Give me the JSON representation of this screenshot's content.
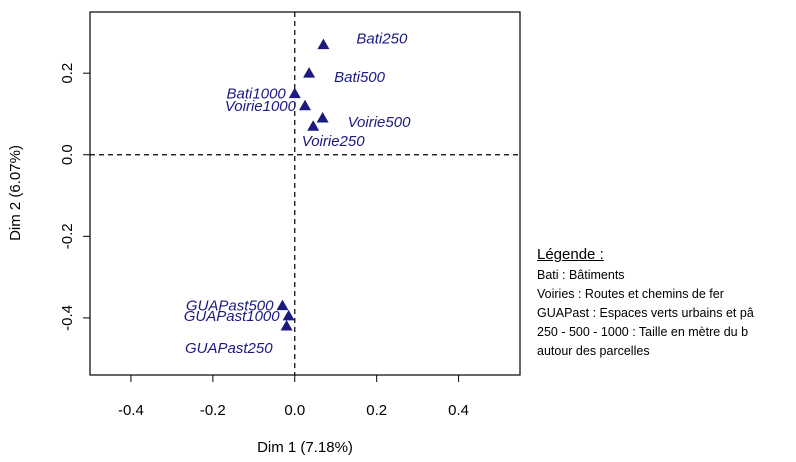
{
  "chart_data": {
    "type": "scatter",
    "xlabel": "Dim 1 (7.18%)",
    "ylabel": "Dim 2 (6.07%)",
    "xlim": [
      -0.5,
      0.55
    ],
    "ylim": [
      -0.54,
      0.35
    ],
    "xticks": [
      "-0.4",
      "-0.2",
      "0.0",
      "0.2",
      "0.4"
    ],
    "xtick_values": [
      -0.4,
      -0.2,
      0.0,
      0.2,
      0.4
    ],
    "yticks": [
      "-0.4",
      "-0.2",
      "0.0",
      "0.2"
    ],
    "ytick_values": [
      -0.4,
      -0.2,
      0.0,
      0.2
    ],
    "reference_lines": {
      "x": 0,
      "y": 0,
      "style": "dashed"
    },
    "marker": "filled-triangle",
    "marker_color": "#1a1a80",
    "points": [
      {
        "label": "Bati250",
        "x": 0.07,
        "y": 0.27,
        "label_side": "right"
      },
      {
        "label": "Bati500",
        "x": 0.035,
        "y": 0.2,
        "label_side": "right-below"
      },
      {
        "label": "Bati1000",
        "x": 0.0,
        "y": 0.15,
        "label_side": "left"
      },
      {
        "label": "Voirie1000",
        "x": 0.025,
        "y": 0.12,
        "label_side": "left"
      },
      {
        "label": "Voirie500",
        "x": 0.068,
        "y": 0.09,
        "label_side": "right-below"
      },
      {
        "label": "Voirie250",
        "x": 0.045,
        "y": 0.07,
        "label_side": "below"
      },
      {
        "label": "GUAPast500",
        "x": -0.03,
        "y": -0.37,
        "label_side": "left"
      },
      {
        "label": "GUAPast1000",
        "x": -0.015,
        "y": -0.395,
        "label_side": "left"
      },
      {
        "label": "GUAPast250",
        "x": -0.02,
        "y": -0.42,
        "label_side": "left-below"
      }
    ]
  },
  "legend": {
    "title": "Légende :",
    "lines": [
      "Bati : Bâtiments",
      "Voiries : Routes et chemins de fer",
      "GUAPast : Espaces verts urbains et pâ",
      "250 - 500 - 1000 : Taille en mètre du b",
      "autour des parcelles"
    ]
  }
}
